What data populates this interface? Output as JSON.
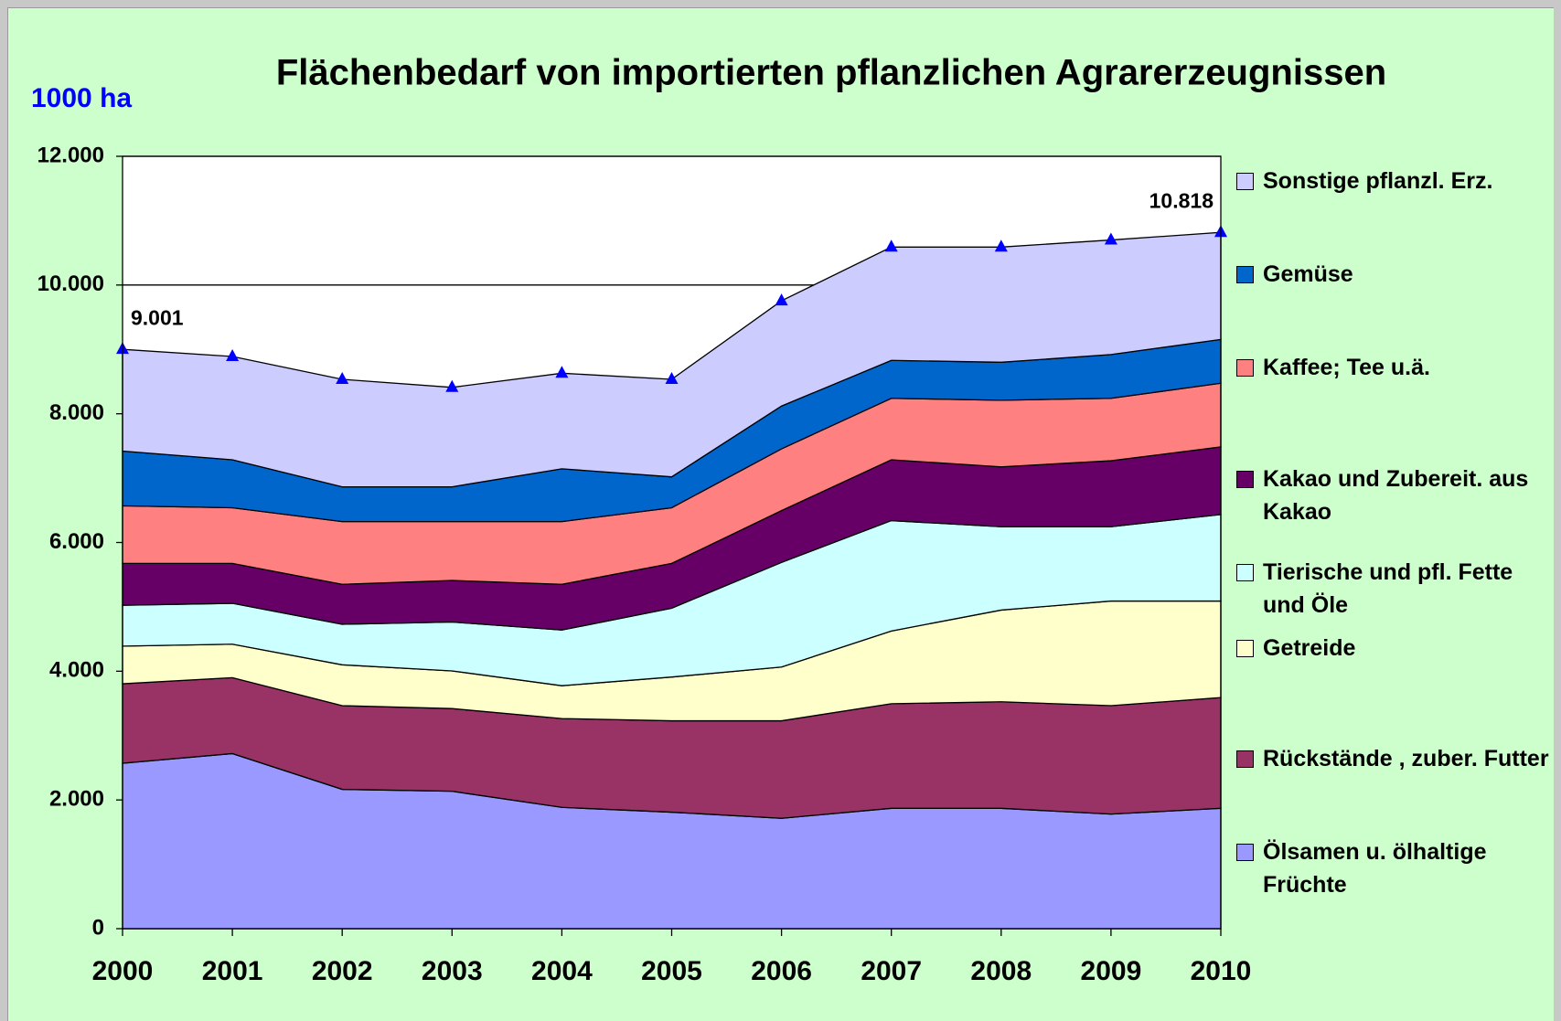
{
  "chart_data": {
    "type": "stacked_area",
    "title": "Flächenbedarf von importierten pflanzlichen Agrarerzeugnissen",
    "y_label": "1000 ha",
    "categories": [
      "2000",
      "2001",
      "2002",
      "2003",
      "2004",
      "2005",
      "2006",
      "2007",
      "2008",
      "2009",
      "2010"
    ],
    "series": [
      {
        "name": "Ölsamen u. ölhaltige Früchte",
        "color": "#9999ff",
        "values": [
          2570,
          2720,
          2165,
          2135,
          1885,
          1810,
          1715,
          1870,
          1870,
          1780,
          1870
        ]
      },
      {
        "name": "Rückstände , zuber. Futter",
        "color": "#993366",
        "values": [
          1235,
          1180,
          1300,
          1285,
          1380,
          1420,
          1515,
          1625,
          1655,
          1685,
          1720
        ]
      },
      {
        "name": "Getreide",
        "color": "#ffffcc",
        "values": [
          585,
          520,
          635,
          585,
          510,
          680,
          835,
          1130,
          1425,
          1625,
          1500
        ]
      },
      {
        "name": "Tierische und pfl. Fette und Öle",
        "color": "#ccffff",
        "values": [
          635,
          635,
          630,
          760,
          865,
          1070,
          1625,
          1715,
          1295,
          1155,
          1345
        ]
      },
      {
        "name": "Kakao und Zubereit. aus Kakao",
        "color": "#660066",
        "values": [
          650,
          620,
          620,
          645,
          710,
          695,
          805,
          945,
          930,
          1025,
          1050
        ]
      },
      {
        "name": "Kaffee; Tee u.ä.",
        "color": "#ff8080",
        "values": [
          895,
          865,
          975,
          915,
          975,
          865,
          960,
          955,
          1035,
          970,
          990
        ]
      },
      {
        "name": "Gemüse",
        "color": "#0066cc",
        "values": [
          850,
          745,
          540,
          540,
          820,
          480,
          665,
          590,
          590,
          680,
          680
        ]
      },
      {
        "name": "Sonstige pflanzl. Erz.",
        "color": "#ccccff",
        "values": [
          1581,
          1605,
          1670,
          1545,
          1485,
          1515,
          1635,
          1760,
          1790,
          1780,
          1663
        ]
      }
    ],
    "annotations": [
      {
        "text": "9.001",
        "x": "2000"
      },
      {
        "text": "10.818",
        "x": "2010"
      }
    ],
    "marker_color": "#0000ff",
    "ylim": [
      0,
      12000
    ],
    "yticks": [
      0,
      {
        "value": 2000,
        "label": "2.000"
      },
      {
        "value": 4000,
        "label": "4.000"
      },
      {
        "value": 6000,
        "label": "6.000"
      },
      {
        "value": 8000,
        "label": "8.000"
      },
      {
        "value": 10000,
        "label": "10.000"
      },
      {
        "value": 12000,
        "label": "12.000"
      }
    ],
    "grid": true,
    "legend": "right"
  }
}
